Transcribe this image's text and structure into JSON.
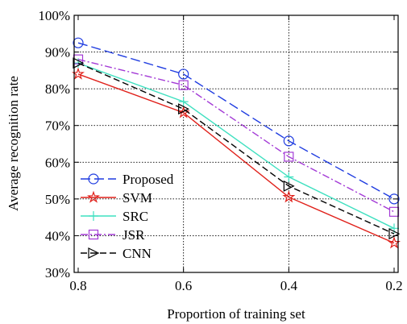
{
  "chart_data": {
    "type": "line",
    "xlabel": "Proportion of training set",
    "ylabel": "Average recognition rate",
    "x": [
      0.8,
      0.6,
      0.4,
      0.2
    ],
    "x_ticks": [
      "0.8",
      "0.6",
      "0.4",
      "0.2"
    ],
    "x_reversed": true,
    "ylim": [
      30,
      100
    ],
    "y_ticks": [
      "30%",
      "40%",
      "50%",
      "60%",
      "70%",
      "80%",
      "90%",
      "100%"
    ],
    "grid": true,
    "legend_position": "bottom-left",
    "series": [
      {
        "name": "Proposed",
        "values": [
          92.5,
          84.0,
          65.8,
          50.0
        ],
        "color": "#1f3ce0",
        "dash": "long-dash",
        "marker": "circle"
      },
      {
        "name": "SVM",
        "values": [
          84.0,
          73.5,
          50.5,
          38.0
        ],
        "color": "#e0201a",
        "dash": "solid",
        "marker": "star"
      },
      {
        "name": "SRC",
        "values": [
          87.0,
          76.5,
          56.0,
          42.0
        ],
        "color": "#3fe0c0",
        "dash": "solid",
        "marker": "plus"
      },
      {
        "name": "JSR",
        "values": [
          88.0,
          81.0,
          61.5,
          46.5
        ],
        "color": "#a33ad6",
        "dash": "dash-dot",
        "marker": "square"
      },
      {
        "name": "CNN",
        "values": [
          87.0,
          74.5,
          53.5,
          40.5
        ],
        "color": "#000000",
        "dash": "dash",
        "marker": "triangle-right"
      }
    ]
  }
}
